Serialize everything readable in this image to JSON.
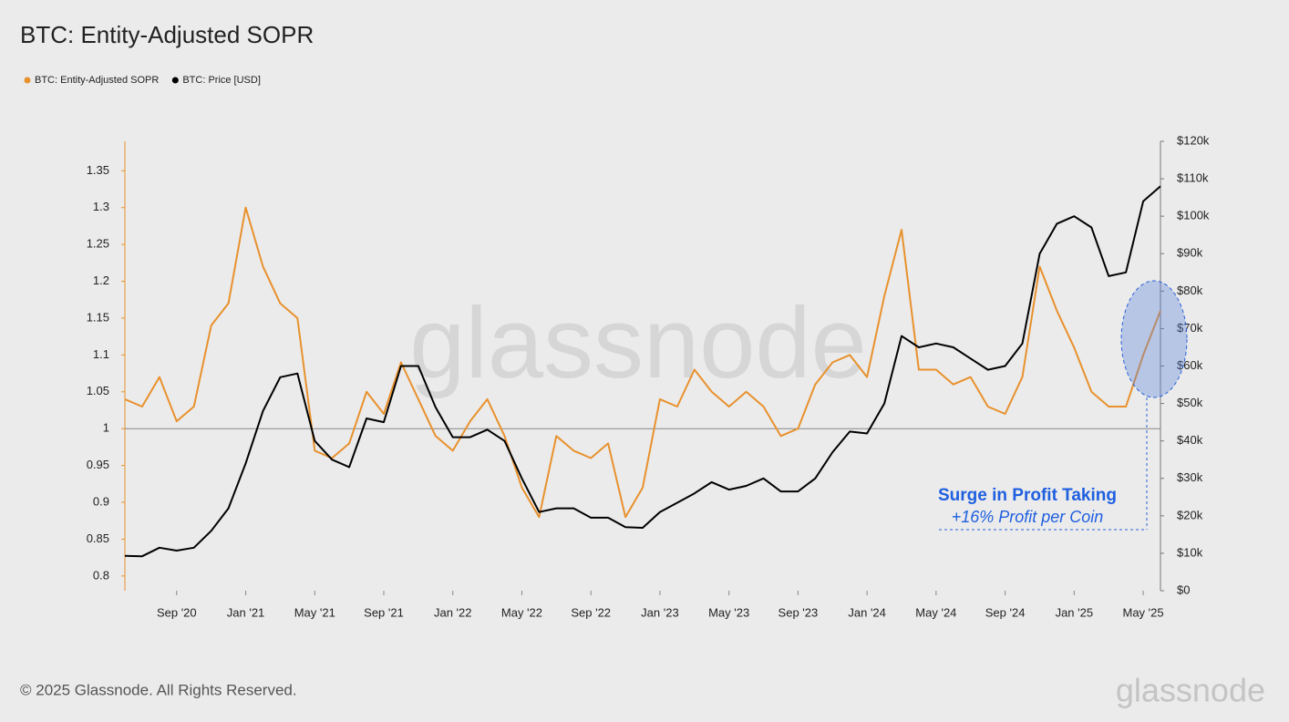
{
  "chart_data": {
    "type": "line",
    "title": "BTC: Entity-Adjusted SOPR",
    "x": [
      "2020-06",
      "2020-07",
      "2020-08",
      "2020-09",
      "2020-10",
      "2020-11",
      "2020-12",
      "2021-01",
      "2021-02",
      "2021-03",
      "2021-04",
      "2021-05",
      "2021-06",
      "2021-07",
      "2021-08",
      "2021-09",
      "2021-10",
      "2021-11",
      "2021-12",
      "2022-01",
      "2022-02",
      "2022-03",
      "2022-04",
      "2022-05",
      "2022-06",
      "2022-07",
      "2022-08",
      "2022-09",
      "2022-10",
      "2022-11",
      "2022-12",
      "2023-01",
      "2023-02",
      "2023-03",
      "2023-04",
      "2023-05",
      "2023-06",
      "2023-07",
      "2023-08",
      "2023-09",
      "2023-10",
      "2023-11",
      "2023-12",
      "2024-01",
      "2024-02",
      "2024-03",
      "2024-04",
      "2024-05",
      "2024-06",
      "2024-07",
      "2024-08",
      "2024-09",
      "2024-10",
      "2024-11",
      "2024-12",
      "2025-01",
      "2025-02",
      "2025-03",
      "2025-04",
      "2025-05",
      "2025-06"
    ],
    "series": [
      {
        "name": "BTC: Entity-Adjusted SOPR",
        "color": "#e8912d",
        "axis": "y",
        "values": [
          1.04,
          1.03,
          1.07,
          1.01,
          1.03,
          1.14,
          1.17,
          1.3,
          1.22,
          1.17,
          1.15,
          0.97,
          0.96,
          0.98,
          1.05,
          1.02,
          1.09,
          1.04,
          0.99,
          0.97,
          1.01,
          1.04,
          0.99,
          0.92,
          0.88,
          0.99,
          0.97,
          0.96,
          0.98,
          0.88,
          0.92,
          1.04,
          1.03,
          1.08,
          1.05,
          1.03,
          1.05,
          1.03,
          0.99,
          1.0,
          1.06,
          1.09,
          1.1,
          1.07,
          1.18,
          1.27,
          1.08,
          1.08,
          1.06,
          1.07,
          1.03,
          1.02,
          1.07,
          1.22,
          1.16,
          1.11,
          1.05,
          1.03,
          1.03,
          1.1,
          1.16
        ]
      },
      {
        "name": "BTC: Price [USD]",
        "color": "#000000",
        "axis": "y2",
        "values": [
          9300,
          9200,
          11500,
          10700,
          11500,
          16000,
          22000,
          34000,
          48000,
          57000,
          58000,
          40000,
          35000,
          33000,
          46000,
          45000,
          60000,
          60000,
          49000,
          41000,
          41000,
          43000,
          40000,
          30000,
          21000,
          22000,
          22000,
          19500,
          19500,
          17000,
          16800,
          21000,
          23500,
          26000,
          29000,
          27000,
          28000,
          30000,
          26500,
          26500,
          30000,
          37000,
          42500,
          42000,
          50000,
          68000,
          65000,
          66000,
          65000,
          62000,
          59000,
          60000,
          66000,
          90000,
          98000,
          100000,
          97000,
          84000,
          85000,
          104000,
          108000
        ]
      }
    ],
    "xlim": [
      "2020-06",
      "2025-06"
    ],
    "xticks": [
      {
        "value": "2020-09",
        "label": "Sep '20"
      },
      {
        "value": "2021-01",
        "label": "Jan '21"
      },
      {
        "value": "2021-05",
        "label": "May '21"
      },
      {
        "value": "2021-09",
        "label": "Sep '21"
      },
      {
        "value": "2022-01",
        "label": "Jan '22"
      },
      {
        "value": "2022-05",
        "label": "May '22"
      },
      {
        "value": "2022-09",
        "label": "Sep '22"
      },
      {
        "value": "2023-01",
        "label": "Jan '23"
      },
      {
        "value": "2023-05",
        "label": "May '23"
      },
      {
        "value": "2023-09",
        "label": "Sep '23"
      },
      {
        "value": "2024-01",
        "label": "Jan '24"
      },
      {
        "value": "2024-05",
        "label": "May '24"
      },
      {
        "value": "2024-09",
        "label": "Sep '24"
      },
      {
        "value": "2025-01",
        "label": "Jan '25"
      },
      {
        "value": "2025-05",
        "label": "May '25"
      }
    ],
    "ylim": [
      0.78,
      1.39
    ],
    "yticks": [
      0.8,
      0.85,
      0.9,
      0.95,
      1,
      1.05,
      1.1,
      1.15,
      1.2,
      1.25,
      1.3,
      1.35
    ],
    "y2lim": [
      0,
      120000
    ],
    "y2ticks": [
      {
        "value": 0,
        "label": "$0"
      },
      {
        "value": 10000,
        "label": "$10k"
      },
      {
        "value": 20000,
        "label": "$20k"
      },
      {
        "value": 30000,
        "label": "$30k"
      },
      {
        "value": 40000,
        "label": "$40k"
      },
      {
        "value": 50000,
        "label": "$50k"
      },
      {
        "value": 60000,
        "label": "$60k"
      },
      {
        "value": 70000,
        "label": "$70k"
      },
      {
        "value": 80000,
        "label": "$80k"
      },
      {
        "value": 90000,
        "label": "$90k"
      },
      {
        "value": 100000,
        "label": "$100k"
      },
      {
        "value": 110000,
        "label": "$110k"
      },
      {
        "value": 120000,
        "label": "$120k"
      }
    ],
    "reference_line": 1,
    "annotations": [
      "Surge in Profit Taking",
      "+16% Profit per Coin"
    ],
    "watermark": "glassnode",
    "footer": "© 2025 Glassnode. All Rights Reserved."
  }
}
